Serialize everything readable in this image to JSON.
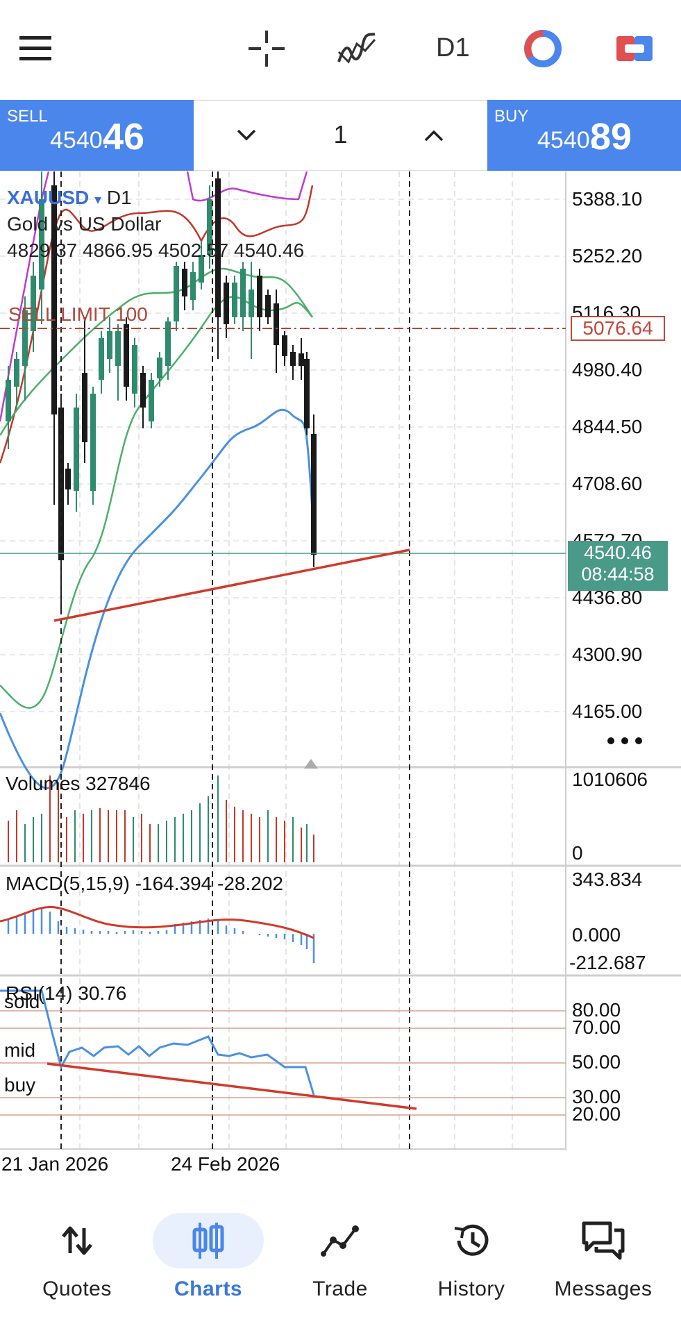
{
  "top_bar": {
    "menu_icon": "hamburger-menu-icon",
    "crosshair_icon": "crosshair-icon",
    "indicators_icon": "indicators-icon",
    "timeframe": "D1",
    "one_click_trading_icon": "one-click-trading-icon",
    "trade_panel_toggle_icon": "trade-panel-toggle-icon"
  },
  "trade_panel": {
    "sell": {
      "label": "SELL",
      "price_prefix": "4540.",
      "price_suffix": "46"
    },
    "lot": "1",
    "buy": {
      "label": "BUY",
      "price_prefix": "4540.",
      "price_suffix": "89"
    }
  },
  "chart": {
    "symbol": "XAUUSD",
    "symbol_dropdown": "▾",
    "timeframe": "D1",
    "description": "Gold vs US Dollar",
    "ohlc": "4829.37 4866.95 4502.57 4540.46",
    "pending_order_label": "SELL LIMIT 100",
    "pending_order_price": "5076.64",
    "current_price": "4540.46",
    "bar_countdown": "08:44:58",
    "more_icon": "more-horizontal-icon",
    "price_axis": [
      "5388.10",
      "5252.20",
      "5116.30",
      "4980.40",
      "4844.50",
      "4708.60",
      "4572.70",
      "4436.80",
      "4300.90",
      "4165.00"
    ],
    "date_labels": [
      "21 Jan 2026",
      "24 Feb 2026"
    ]
  },
  "volumes": {
    "title": "Volumes 327846",
    "axis_max": "1010606",
    "axis_min": "0"
  },
  "macd": {
    "title": "MACD(5,15,9) -164.394 -28.202",
    "axis": [
      "343.834",
      "0.000",
      "-212.687"
    ]
  },
  "rsi": {
    "title": "RSI(14) 30.76",
    "annotations": [
      "sold",
      "mid",
      "buy"
    ],
    "axis": [
      "80.00",
      "70.00",
      "50.00",
      "30.00",
      "20.00"
    ]
  },
  "bottom_nav": [
    {
      "label": "Quotes",
      "icon": "quotes-icon",
      "active": false
    },
    {
      "label": "Charts",
      "icon": "charts-icon",
      "active": true
    },
    {
      "label": "Trade",
      "icon": "trade-icon",
      "active": false
    },
    {
      "label": "History",
      "icon": "history-icon",
      "active": false
    },
    {
      "label": "Messages",
      "icon": "messages-icon",
      "active": false
    }
  ],
  "colors": {
    "accent": "#4a86ec",
    "bull_candle": "#2e8b6e",
    "bear_candle": "#1a1a1a",
    "trendline": "#d03a2a",
    "price_line": "#4a9a8a",
    "ma_fast": "#4a90e2",
    "ma_mid": "#4caf6a",
    "band_red": "#c0392b",
    "band_magenta": "#c03ad0"
  }
}
